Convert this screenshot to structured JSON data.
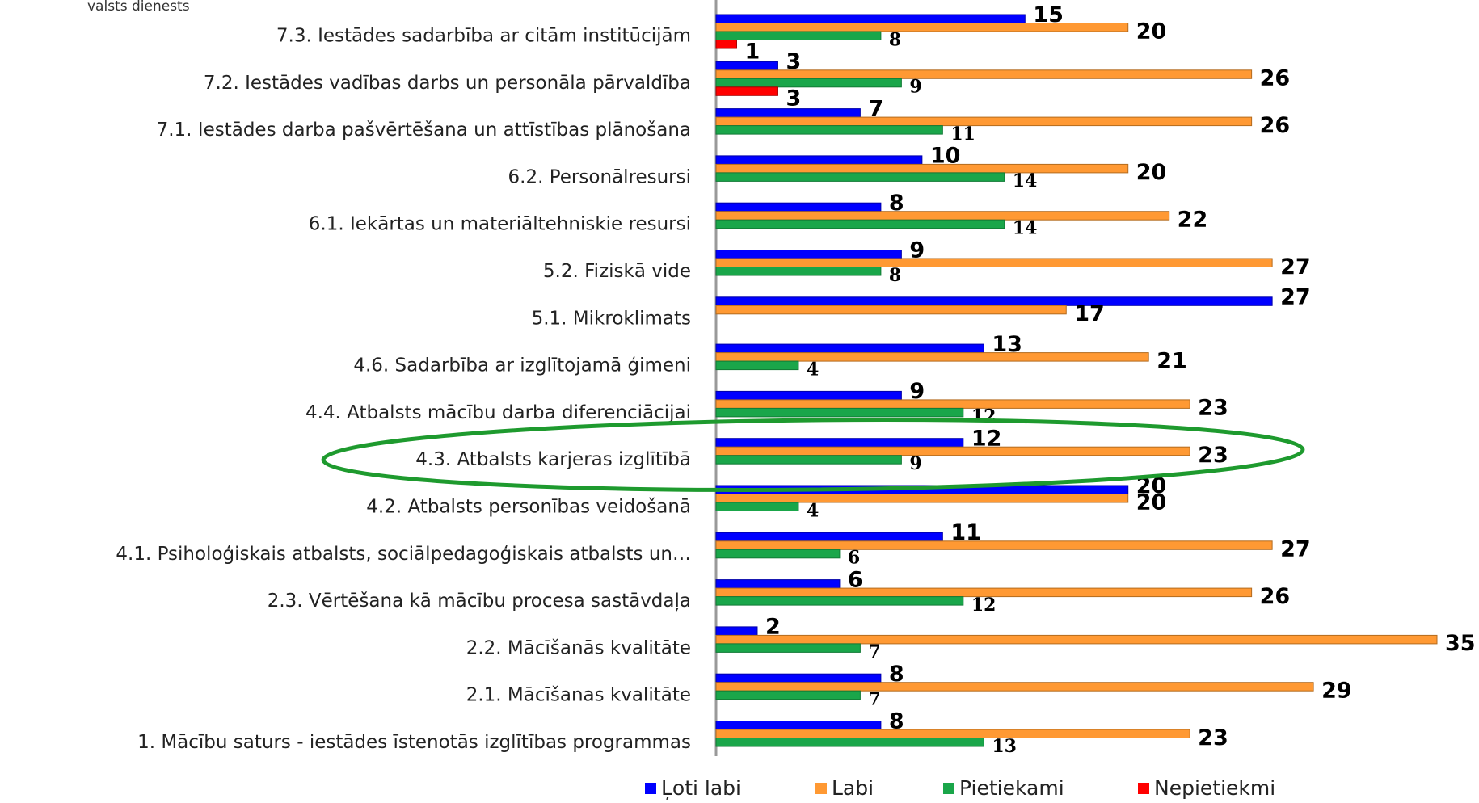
{
  "chart_data": {
    "type": "hbar",
    "subtitle": "valsts dienests",
    "categories": [
      "7.3. Iestādes sadarbība ar citām institūcijām",
      "7.2. Iestādes vadības darbs un personāla pārvaldība",
      "7.1. Iestādes darba pašvērtēšana un attīstības plānošana",
      "6.2. Personālresursi",
      "6.1. Iekārtas un materiāltehniskie resursi",
      "5.2. Fiziskā vide",
      "5.1. Mikroklimats",
      "4.6. Sadarbība ar izglītojamā ģimeni",
      "4.4. Atbalsts mācību darba diferenciācijai",
      "4.3. Atbalsts karjeras izglītībā",
      "4.2. Atbalsts personības veidošanā",
      "4.1. Psiholoģiskais atbalsts, sociālpedagoģiskais atbalsts un…",
      "2.3. Vērtēšana kā mācību procesa sastāvdaļa",
      "2.2. Mācīšanās kvalitāte",
      "2.1. Mācīšanas kvalitāte",
      "1. Mācību saturs - iestādes īstenotās izglītības programmas"
    ],
    "series": [
      {
        "name": "Ļoti labi",
        "color": "#0000ff",
        "values": [
          15,
          3,
          7,
          10,
          8,
          9,
          27,
          13,
          9,
          12,
          20,
          11,
          6,
          2,
          8,
          8
        ]
      },
      {
        "name": "Labi",
        "color": "#ff9933",
        "values": [
          20,
          26,
          26,
          20,
          22,
          27,
          17,
          21,
          23,
          23,
          20,
          27,
          26,
          35,
          29,
          23
        ]
      },
      {
        "name": "Pietiekami",
        "color": "#1aa64a",
        "values": [
          8,
          9,
          11,
          14,
          14,
          8,
          null,
          4,
          12,
          9,
          4,
          6,
          12,
          7,
          7,
          13
        ]
      },
      {
        "name": "Nepietiekmi",
        "color": "#ff0000",
        "values": [
          1,
          3,
          null,
          null,
          null,
          null,
          null,
          null,
          null,
          null,
          null,
          null,
          null,
          null,
          null,
          null
        ]
      }
    ],
    "xlim": [
      0,
      35
    ],
    "legend": "bottom"
  }
}
